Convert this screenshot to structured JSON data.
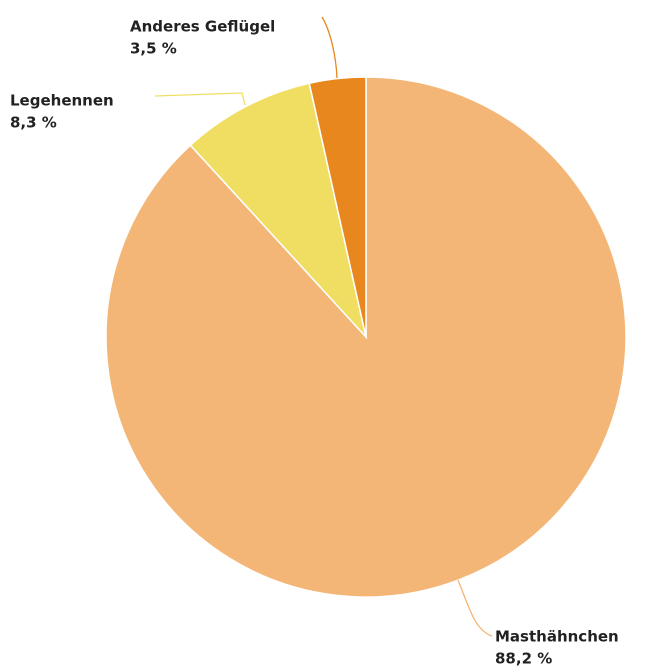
{
  "chart_data": {
    "type": "pie",
    "categories": [
      "Masthähnchen",
      "Legehennen",
      "Anderes Geflügel"
    ],
    "values": [
      88.2,
      8.3,
      3.5
    ],
    "value_labels": [
      "88,2 %",
      "8,3 %",
      "3,5 %"
    ],
    "colors": [
      "#f4b677",
      "#f0de63",
      "#e8871e"
    ]
  }
}
